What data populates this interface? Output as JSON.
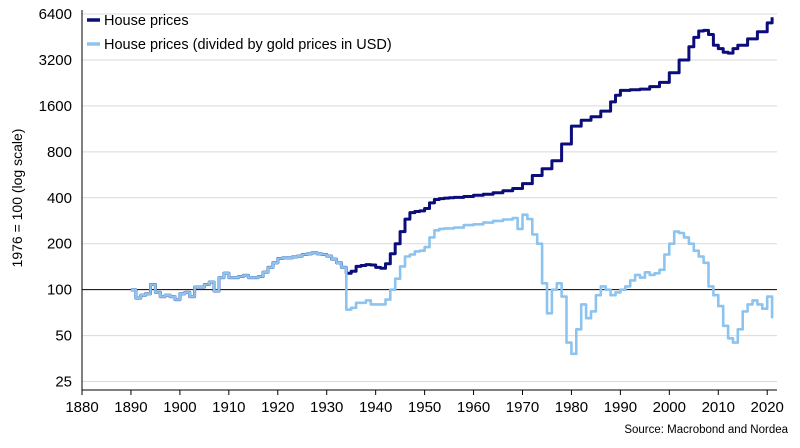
{
  "chart_data": {
    "type": "line",
    "ylabel": "1976 = 100 (log scale)",
    "yscale": "log",
    "xlim": [
      1880,
      2022
    ],
    "ylim": [
      22,
      6800
    ],
    "x_ticks": [
      1880,
      1890,
      1900,
      1910,
      1920,
      1930,
      1940,
      1950,
      1960,
      1970,
      1980,
      1990,
      2000,
      2010,
      2020
    ],
    "x_tick_labels": [
      "1880",
      "1890",
      "1900",
      "1910",
      "1920",
      "1930",
      "1940",
      "1950",
      "1960",
      "1970",
      "1980",
      "1990",
      "2000",
      "2010",
      "2020"
    ],
    "y_ticks": [
      25,
      50,
      100,
      200,
      400,
      800,
      1600,
      3200,
      6400
    ],
    "y_tick_labels": [
      "25",
      "50",
      "100",
      "200",
      "400",
      "800",
      "1600",
      "3200",
      "6400"
    ],
    "reference_line": 100,
    "grid": "horizontal",
    "legend_position": "top-left",
    "source": "Source: Macrobond and Nordea",
    "series": [
      {
        "name": "House prices",
        "color": "#0a0d7a",
        "x": [
          1890,
          1891,
          1892,
          1893,
          1894,
          1895,
          1896,
          1897,
          1898,
          1899,
          1900,
          1901,
          1902,
          1903,
          1904,
          1905,
          1906,
          1907,
          1908,
          1909,
          1910,
          1911,
          1912,
          1913,
          1914,
          1915,
          1916,
          1917,
          1918,
          1919,
          1920,
          1921,
          1922,
          1923,
          1924,
          1925,
          1926,
          1927,
          1928,
          1929,
          1930,
          1931,
          1932,
          1933,
          1934,
          1935,
          1936,
          1937,
          1938,
          1939,
          1940,
          1941,
          1942,
          1943,
          1944,
          1945,
          1946,
          1947,
          1948,
          1949,
          1950,
          1951,
          1952,
          1953,
          1954,
          1955,
          1956,
          1958,
          1960,
          1962,
          1964,
          1966,
          1968,
          1970,
          1972,
          1974,
          1976,
          1978,
          1980,
          1982,
          1984,
          1986,
          1988,
          1989,
          1990,
          1992,
          1994,
          1996,
          1998,
          2000,
          2002,
          2004,
          2005,
          2006,
          2007,
          2008,
          2009,
          2010,
          2011,
          2012,
          2013,
          2014,
          2016,
          2018,
          2020,
          2021
        ],
        "values": [
          100,
          88,
          92,
          94,
          108,
          96,
          90,
          92,
          90,
          86,
          94,
          96,
          90,
          104,
          104,
          108,
          112,
          98,
          120,
          128,
          120,
          120,
          122,
          124,
          120,
          120,
          122,
          130,
          140,
          150,
          160,
          162,
          162,
          164,
          166,
          170,
          172,
          175,
          172,
          170,
          166,
          158,
          150,
          140,
          128,
          132,
          142,
          144,
          146,
          145,
          140,
          138,
          148,
          172,
          200,
          240,
          290,
          320,
          325,
          328,
          340,
          370,
          390,
          395,
          398,
          400,
          402,
          408,
          416,
          422,
          432,
          445,
          460,
          495,
          560,
          620,
          700,
          900,
          1180,
          1290,
          1360,
          1480,
          1700,
          1880,
          2020,
          2040,
          2060,
          2140,
          2280,
          2640,
          3200,
          3900,
          4500,
          4950,
          5000,
          4700,
          4000,
          3800,
          3600,
          3550,
          3800,
          4000,
          4400,
          4900,
          5600,
          6100
        ]
      },
      {
        "name": "House prices (divided by gold prices in USD)",
        "color": "#8dc4ef",
        "x": [
          1890,
          1891,
          1892,
          1893,
          1894,
          1895,
          1896,
          1897,
          1898,
          1899,
          1900,
          1901,
          1902,
          1903,
          1904,
          1905,
          1906,
          1907,
          1908,
          1909,
          1910,
          1911,
          1912,
          1913,
          1914,
          1915,
          1916,
          1917,
          1918,
          1919,
          1920,
          1921,
          1922,
          1923,
          1924,
          1925,
          1926,
          1927,
          1928,
          1929,
          1930,
          1931,
          1932,
          1933,
          1934,
          1935,
          1936,
          1937,
          1938,
          1939,
          1940,
          1941,
          1942,
          1943,
          1944,
          1945,
          1946,
          1947,
          1948,
          1949,
          1950,
          1951,
          1952,
          1953,
          1954,
          1955,
          1956,
          1958,
          1960,
          1962,
          1964,
          1966,
          1968,
          1969,
          1970,
          1971,
          1972,
          1973,
          1974,
          1975,
          1976,
          1977,
          1978,
          1979,
          1980,
          1981,
          1982,
          1983,
          1984,
          1985,
          1986,
          1987,
          1988,
          1989,
          1990,
          1991,
          1992,
          1993,
          1994,
          1995,
          1996,
          1997,
          1998,
          1999,
          2000,
          2001,
          2002,
          2003,
          2004,
          2005,
          2006,
          2007,
          2008,
          2009,
          2010,
          2011,
          2012,
          2013,
          2014,
          2015,
          2016,
          2017,
          2018,
          2019,
          2020,
          2021
        ],
        "values": [
          100,
          88,
          92,
          94,
          108,
          96,
          90,
          92,
          90,
          86,
          94,
          96,
          90,
          104,
          104,
          108,
          112,
          98,
          120,
          128,
          120,
          120,
          122,
          124,
          120,
          120,
          122,
          130,
          140,
          150,
          160,
          162,
          162,
          164,
          166,
          170,
          172,
          175,
          172,
          170,
          166,
          158,
          150,
          140,
          74,
          76,
          82,
          82,
          85,
          80,
          80,
          80,
          86,
          100,
          118,
          142,
          165,
          170,
          178,
          180,
          190,
          220,
          245,
          250,
          252,
          252,
          255,
          265,
          268,
          275,
          282,
          288,
          295,
          250,
          310,
          290,
          230,
          200,
          110,
          70,
          100,
          110,
          90,
          45,
          38,
          55,
          80,
          65,
          72,
          92,
          105,
          100,
          92,
          96,
          100,
          105,
          115,
          125,
          120,
          130,
          125,
          128,
          135,
          170,
          200,
          240,
          235,
          220,
          200,
          180,
          165,
          150,
          105,
          92,
          78,
          58,
          48,
          45,
          55,
          72,
          80,
          85,
          80,
          75,
          90,
          65
        ]
      }
    ]
  }
}
